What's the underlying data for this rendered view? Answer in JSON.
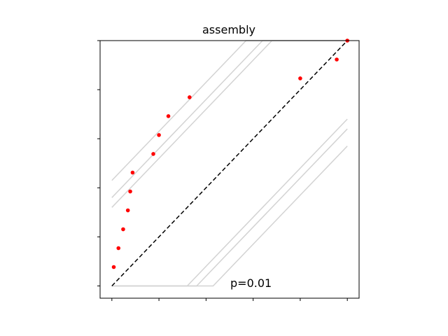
{
  "chart_data": {
    "type": "scatter",
    "title": "assembly",
    "xlabel": "",
    "ylabel": "",
    "xlim": [
      -0.05,
      1.05
    ],
    "ylim": [
      -0.05,
      1.0
    ],
    "xticks": [
      0,
      0.2,
      0.4,
      0.6,
      0.8,
      1.0
    ],
    "yticks": [
      0,
      0.2,
      0.4,
      0.6,
      0.8,
      1.0
    ],
    "tick_labels_visible": false,
    "grid": false,
    "annotation": "p=0.01",
    "colors": {
      "points": "#ff0000",
      "reference_line": "#000000",
      "band_lines": "#d3d3d3",
      "frame": "#000000"
    },
    "reference_line": {
      "style": "dashed",
      "x": [
        0,
        1
      ],
      "y": [
        0,
        1
      ]
    },
    "band_lines": [
      {
        "x": [
          0,
          0.57,
          1
        ],
        "y": [
          0.43,
          1,
          1
        ]
      },
      {
        "x": [
          0,
          0.64,
          1
        ],
        "y": [
          0.36,
          1,
          1
        ]
      },
      {
        "x": [
          0,
          0.68,
          1
        ],
        "y": [
          0.32,
          1,
          1
        ]
      },
      {
        "x": [
          0,
          0.32,
          1
        ],
        "y": [
          0,
          0,
          0.68
        ]
      },
      {
        "x": [
          0,
          0.36,
          1
        ],
        "y": [
          0,
          0,
          0.64
        ]
      },
      {
        "x": [
          0,
          0.43,
          1
        ],
        "y": [
          0,
          0,
          0.57
        ]
      }
    ],
    "points": {
      "x": [
        0.008,
        0.028,
        0.048,
        0.068,
        0.078,
        0.088,
        0.176,
        0.2,
        0.24,
        0.33,
        0.8,
        0.955,
        1.0
      ],
      "y": [
        0.077,
        0.154,
        0.231,
        0.308,
        0.385,
        0.462,
        0.538,
        0.615,
        0.692,
        0.769,
        0.846,
        0.923,
        1.0
      ]
    }
  }
}
